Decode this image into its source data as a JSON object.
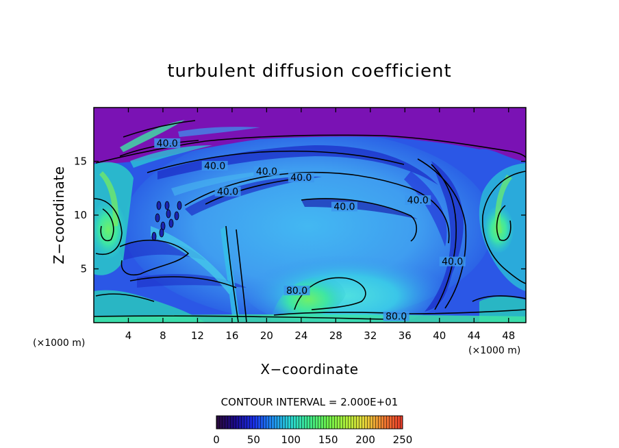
{
  "chart_data": {
    "type": "heatmap",
    "title": "turbulent diffusion coefficient",
    "xlabel": "X−coordinate",
    "ylabel": "Z−coordinate",
    "x_unit": "(×1000 m)",
    "y_unit": "(×1000 m)",
    "xlim": [
      0,
      50
    ],
    "ylim": [
      0,
      20
    ],
    "x_ticks": [
      4,
      8,
      12,
      16,
      20,
      24,
      28,
      32,
      36,
      40,
      44,
      48
    ],
    "y_ticks": [
      5,
      10,
      15
    ],
    "contour_interval_text": "CONTOUR INTERVAL = 2.000E+01",
    "contour_interval": 20,
    "contour_labels": [
      {
        "text": "40.0",
        "x": 8.5,
        "y": 16.5
      },
      {
        "text": "40.0",
        "x": 14,
        "y": 14.4
      },
      {
        "text": "40.0",
        "x": 20,
        "y": 13.9
      },
      {
        "text": "40.0",
        "x": 15.5,
        "y": 12.0
      },
      {
        "text": "40.0",
        "x": 24,
        "y": 13.3
      },
      {
        "text": "40.0",
        "x": 29,
        "y": 10.6
      },
      {
        "text": "40.0",
        "x": 37.5,
        "y": 11.2
      },
      {
        "text": "40.0",
        "x": 41.5,
        "y": 5.5
      },
      {
        "text": "80.0",
        "x": 23.5,
        "y": 2.8
      },
      {
        "text": "80.0",
        "x": 35,
        "y": 0.4
      }
    ],
    "colorbar": {
      "min": 0,
      "max": 250,
      "ticks": [
        0,
        50,
        100,
        150,
        200,
        250
      ],
      "colors": [
        "#2a0a3a",
        "#1b0a8a",
        "#1a2fe8",
        "#1e8cf0",
        "#2ad6d0",
        "#3ee88a",
        "#6ef04a",
        "#b0ee3a",
        "#e8d43a",
        "#ee7a30",
        "#e83a2a"
      ]
    },
    "field_colors": {
      "background": "#2b57e6",
      "top_layer": "#7a12b4",
      "high": "#3ae7a0",
      "cyan": "#32c8d8",
      "light_blue": "#3c98ee",
      "dark_blue": "#1c2ec8"
    }
  }
}
